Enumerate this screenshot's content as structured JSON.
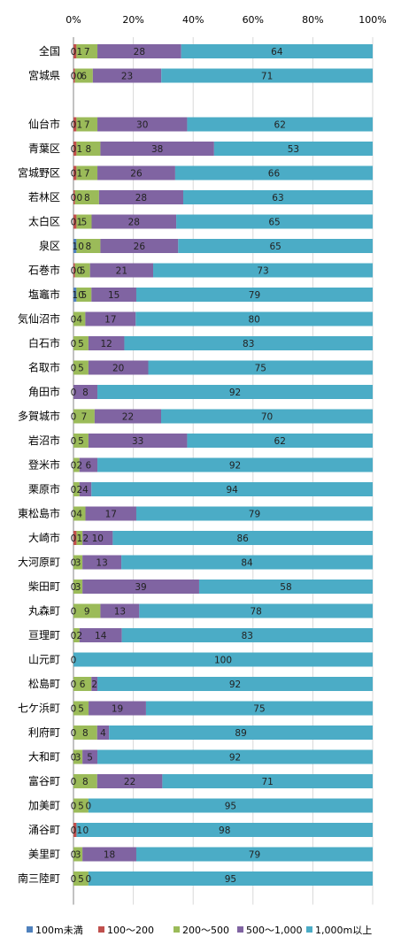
{
  "chart_data": {
    "type": "bar",
    "orientation": "horizontal",
    "stacked": "percent",
    "xlim": [
      0,
      100
    ],
    "x_ticks": [
      "0%",
      "20%",
      "40%",
      "60%",
      "80%",
      "100%"
    ],
    "legend_position": "bottom",
    "series": [
      {
        "name": "100m未満",
        "color": "#4f81bd"
      },
      {
        "name": "100～200",
        "color": "#c0504d"
      },
      {
        "name": "200～500",
        "color": "#9bbb59"
      },
      {
        "name": "500～1,000",
        "color": "#8064a2"
      },
      {
        "name": "1,000m以上",
        "color": "#4bacc6"
      }
    ],
    "rows": [
      {
        "label": "全国",
        "values": [
          0,
          1,
          7,
          28,
          64
        ],
        "labels": [
          "0",
          "1",
          "7",
          "28",
          "64"
        ]
      },
      {
        "label": "宮城県",
        "values": [
          0,
          0.5,
          6,
          23,
          71
        ],
        "labels": [
          "0",
          "0",
          "6",
          "23",
          "71"
        ]
      },
      {
        "label": "",
        "values": [],
        "labels": []
      },
      {
        "label": "仙台市",
        "values": [
          0,
          1,
          7,
          30,
          62
        ],
        "labels": [
          "0",
          "1",
          "7",
          "30",
          "62"
        ]
      },
      {
        "label": "青葉区",
        "values": [
          0,
          1,
          8,
          38,
          53
        ],
        "labels": [
          "0",
          "1",
          "8",
          "38",
          "53"
        ]
      },
      {
        "label": "宮城野区",
        "values": [
          0,
          1,
          7,
          26,
          66
        ],
        "labels": [
          "0",
          "1",
          "7",
          "26",
          "66"
        ]
      },
      {
        "label": "若林区",
        "values": [
          0,
          0.5,
          8,
          28,
          63
        ],
        "labels": [
          "0",
          "0",
          "8",
          "28",
          "63"
        ]
      },
      {
        "label": "太白区",
        "values": [
          0,
          1,
          5,
          28,
          65
        ],
        "labels": [
          "0",
          "1",
          "5",
          "28",
          "65"
        ]
      },
      {
        "label": "泉区",
        "values": [
          1,
          0,
          8,
          26,
          65
        ],
        "labels": [
          "1",
          "0",
          "8",
          "26",
          "65"
        ]
      },
      {
        "label": "石巻市",
        "values": [
          0,
          0.5,
          5,
          21,
          73
        ],
        "labels": [
          "0",
          "0",
          "5",
          "21",
          "73"
        ]
      },
      {
        "label": "塩竈市",
        "values": [
          1,
          0,
          5,
          15,
          79
        ],
        "labels": [
          "1",
          "0",
          "5",
          "15",
          "79"
        ]
      },
      {
        "label": "気仙沼市",
        "values": [
          0,
          0,
          4,
          17,
          80
        ],
        "labels": [
          "0",
          "",
          "4",
          "17",
          "80"
        ]
      },
      {
        "label": "白石市",
        "values": [
          0,
          0,
          5,
          12,
          83
        ],
        "labels": [
          "0",
          "",
          "5",
          "12",
          "83"
        ]
      },
      {
        "label": "名取市",
        "values": [
          0,
          0,
          5,
          20,
          75
        ],
        "labels": [
          "0",
          "",
          "5",
          "20",
          "75"
        ]
      },
      {
        "label": "角田市",
        "values": [
          0,
          0,
          0,
          8,
          92
        ],
        "labels": [
          "0",
          "",
          "",
          "8",
          "92"
        ]
      },
      {
        "label": "多賀城市",
        "values": [
          0,
          0,
          7,
          22,
          70
        ],
        "labels": [
          "0",
          "",
          "7",
          "22",
          "70"
        ]
      },
      {
        "label": "岩沼市",
        "values": [
          0,
          0,
          5,
          33,
          62
        ],
        "labels": [
          "0",
          "",
          "5",
          "33",
          "62"
        ]
      },
      {
        "label": "登米市",
        "values": [
          0,
          0,
          2,
          6,
          92
        ],
        "labels": [
          "0",
          "",
          "2",
          "6",
          "92"
        ]
      },
      {
        "label": "栗原市",
        "values": [
          0,
          0,
          2,
          4,
          94
        ],
        "labels": [
          "0",
          "",
          "2",
          "4",
          "94"
        ]
      },
      {
        "label": "東松島市",
        "values": [
          0,
          0,
          4,
          17,
          79
        ],
        "labels": [
          "0",
          "",
          "4",
          "17",
          "79"
        ]
      },
      {
        "label": "大崎市",
        "values": [
          0,
          1,
          2,
          10,
          86
        ],
        "labels": [
          "0",
          "1",
          "2",
          "10",
          "86"
        ]
      },
      {
        "label": "大河原町",
        "values": [
          0,
          0,
          3,
          13,
          84
        ],
        "labels": [
          "0",
          "",
          "3",
          "13",
          "84"
        ]
      },
      {
        "label": "柴田町",
        "values": [
          0,
          0,
          3,
          39,
          58
        ],
        "labels": [
          "0",
          "",
          "3",
          "39",
          "58"
        ]
      },
      {
        "label": "丸森町",
        "values": [
          0,
          0,
          9,
          13,
          78
        ],
        "labels": [
          "0",
          "",
          "9",
          "13",
          "78"
        ]
      },
      {
        "label": "亘理町",
        "values": [
          0,
          0,
          2,
          14,
          83
        ],
        "labels": [
          "0",
          "",
          "2",
          "14",
          "83"
        ]
      },
      {
        "label": "山元町",
        "values": [
          0,
          0,
          0,
          0,
          100
        ],
        "labels": [
          "0",
          "",
          "",
          "",
          "100"
        ]
      },
      {
        "label": "松島町",
        "values": [
          0,
          0,
          6,
          2,
          92
        ],
        "labels": [
          "0",
          "",
          "6",
          "2",
          "92"
        ]
      },
      {
        "label": "七ケ浜町",
        "values": [
          0,
          0,
          5,
          19,
          75
        ],
        "labels": [
          "0",
          "",
          "5",
          "19",
          "75"
        ]
      },
      {
        "label": "利府町",
        "values": [
          0,
          0,
          8,
          4,
          89
        ],
        "labels": [
          "0",
          "",
          "8",
          "4",
          "89"
        ]
      },
      {
        "label": "大和町",
        "values": [
          0,
          0,
          3,
          5,
          92
        ],
        "labels": [
          "0",
          "",
          "3",
          "5",
          "92"
        ]
      },
      {
        "label": "富谷町",
        "values": [
          0,
          0,
          8,
          22,
          71
        ],
        "labels": [
          "0",
          "",
          "8",
          "22",
          "71"
        ]
      },
      {
        "label": "加美町",
        "values": [
          0,
          0,
          5,
          0,
          95
        ],
        "labels": [
          "0",
          "",
          "5",
          "0",
          "95"
        ]
      },
      {
        "label": "涌谷町",
        "values": [
          0,
          1,
          0,
          0,
          98
        ],
        "labels": [
          "0",
          "1",
          "",
          "0",
          "98"
        ]
      },
      {
        "label": "美里町",
        "values": [
          0,
          0,
          3,
          18,
          79
        ],
        "labels": [
          "0",
          "",
          "3",
          "18",
          "79"
        ]
      },
      {
        "label": "南三陸町",
        "values": [
          0,
          0,
          5,
          0,
          95
        ],
        "labels": [
          "0",
          "",
          "5",
          "0",
          "95"
        ]
      }
    ]
  }
}
